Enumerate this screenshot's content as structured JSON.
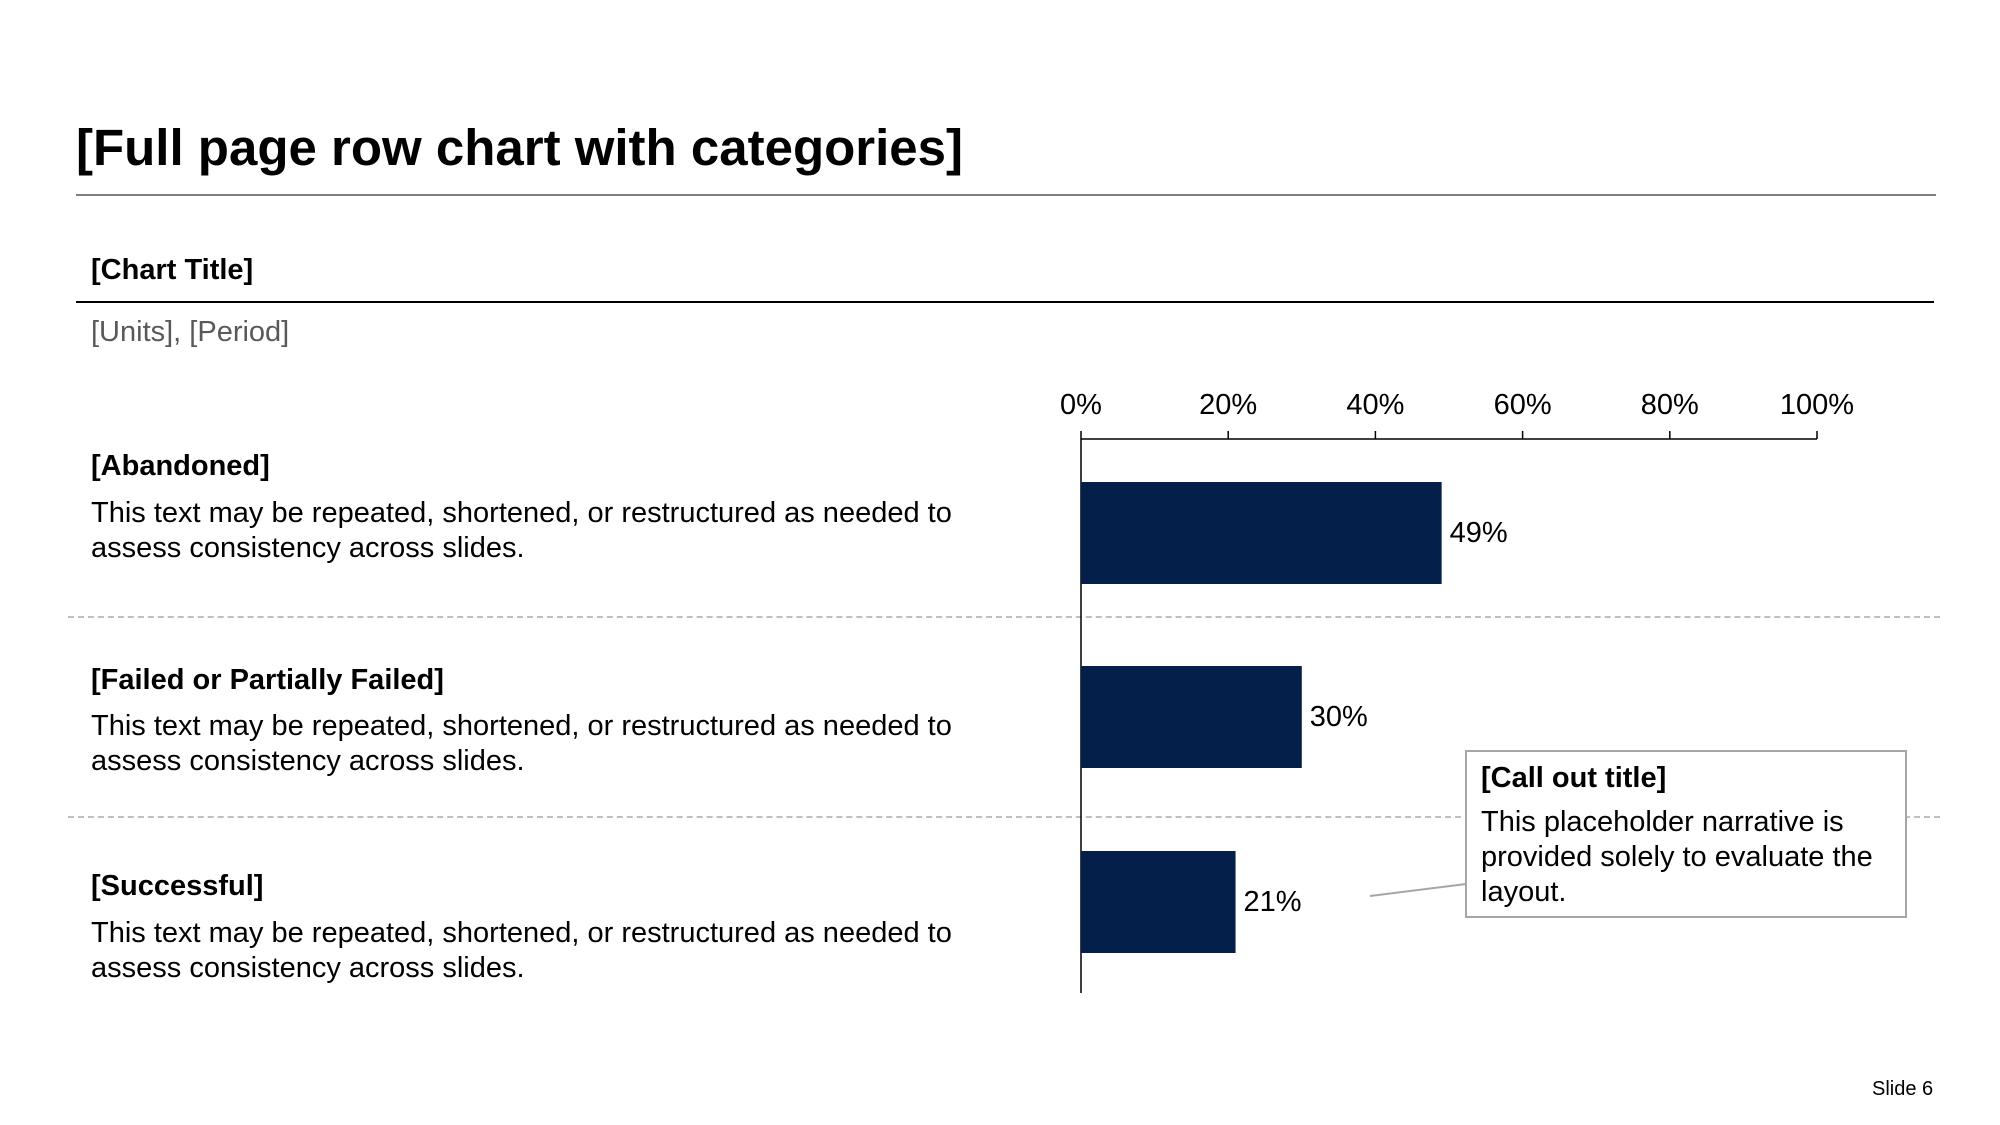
{
  "page": {
    "title": "[Full page row chart with categories]",
    "slide_number": "Slide 6"
  },
  "categories": [
    {
      "label": "[Abandoned]",
      "description": "This text may be repeated, shortened, or restructured as needed to assess consistency across slides."
    },
    {
      "label": "[Failed or Partially Failed]",
      "description": "This text may be repeated, shortened, or restructured as needed to assess consistency across slides."
    },
    {
      "label": "[Successful]",
      "description": "This text may be repeated, shortened, or restructured as needed to assess consistency across slides."
    }
  ],
  "callout": {
    "title": "[Call out title]",
    "body": "This placeholder narrative is provided solely to evaluate the layout."
  },
  "colors": {
    "bar": "#04204A",
    "rule": "#7f7f7f",
    "dash": "#bfbfbf",
    "muted_text": "#595959"
  },
  "chart_data": {
    "type": "bar",
    "orientation": "horizontal",
    "title": "[Chart Title]",
    "subtitle": "[Units], [Period]",
    "categories": [
      "[Abandoned]",
      "[Failed or Partially Failed]",
      "[Successful]"
    ],
    "values": [
      49,
      30,
      21
    ],
    "value_labels": [
      "49%",
      "30%",
      "21%"
    ],
    "xlim": [
      0,
      100
    ],
    "x_ticks": [
      0,
      20,
      40,
      60,
      80,
      100
    ],
    "x_tick_labels": [
      "0%",
      "20%",
      "40%",
      "60%",
      "80%",
      "100%"
    ],
    "axis_position": "top",
    "grid": false,
    "legend": "none"
  }
}
